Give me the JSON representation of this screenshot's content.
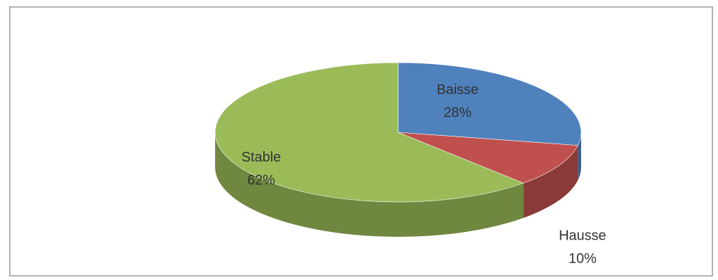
{
  "chart_data": {
    "type": "pie",
    "categories": [
      "Baisse",
      "Hausse",
      "Stable"
    ],
    "values": [
      28,
      10,
      62
    ],
    "value_labels": [
      "28%",
      "10%",
      "62%"
    ],
    "colors": [
      "#4f81bd",
      "#c0504d",
      "#9bbb59"
    ]
  }
}
